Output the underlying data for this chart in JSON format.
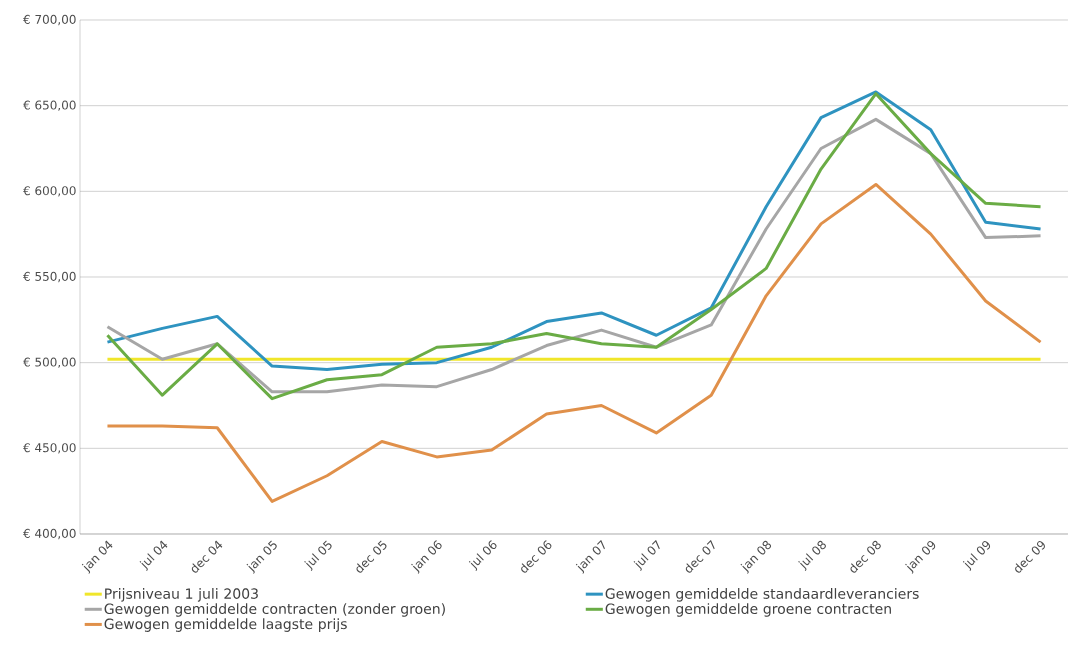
{
  "chart_data": {
    "type": "line",
    "categories": [
      "jan 04",
      "jul 04",
      "dec 04",
      "jan 05",
      "jul 05",
      "dec 05",
      "jan 06",
      "jul 06",
      "dec 06",
      "jan 07",
      "jul 07",
      "dec 07",
      "jan 08",
      "jul 08",
      "dec 08",
      "jan 09",
      "jul 09",
      "dec 09"
    ],
    "series": [
      {
        "name": "Prijsniveau 1 juli 2003",
        "color": "#f0e62a",
        "values": [
          502,
          502,
          502,
          502,
          502,
          502,
          502,
          502,
          502,
          502,
          502,
          502,
          502,
          502,
          502,
          502,
          502,
          502
        ]
      },
      {
        "name": "Gewogen gemiddelde standaardleveranciers",
        "color": "#2e93c0",
        "values": [
          512,
          520,
          527,
          498,
          496,
          499,
          500,
          509,
          524,
          529,
          516,
          532,
          591,
          643,
          658,
          636,
          582,
          578
        ]
      },
      {
        "name": "Gewogen gemiddelde contracten (zonder groen)",
        "color": "#a6a6a6",
        "values": [
          521,
          502,
          511,
          483,
          483,
          487,
          486,
          496,
          510,
          519,
          509,
          522,
          578,
          625,
          642,
          622,
          573,
          574
        ]
      },
      {
        "name": "Gewogen gemiddelde groene contracten",
        "color": "#6aac45",
        "values": [
          516,
          481,
          511,
          479,
          490,
          493,
          509,
          511,
          517,
          511,
          509,
          531,
          555,
          613,
          657,
          622,
          593,
          591
        ]
      },
      {
        "name": "Gewogen gemiddelde laagste prijs",
        "color": "#e0904a",
        "values": [
          463,
          463,
          462,
          419,
          434,
          454,
          445,
          449,
          470,
          475,
          459,
          481,
          539,
          581,
          604,
          575,
          536,
          512
        ]
      }
    ],
    "ylim": [
      400,
      700
    ],
    "yticks": [
      {
        "value": 400,
        "label": "€ 400,00"
      },
      {
        "value": 450,
        "label": "€ 450,00"
      },
      {
        "value": 500,
        "label": "€ 500,00"
      },
      {
        "value": 550,
        "label": "€ 550,00"
      },
      {
        "value": 600,
        "label": "€ 600,00"
      },
      {
        "value": 650,
        "label": "€ 650,00"
      },
      {
        "value": 700,
        "label": "€ 700,00"
      }
    ],
    "grid": "y",
    "legend": "bottom"
  }
}
